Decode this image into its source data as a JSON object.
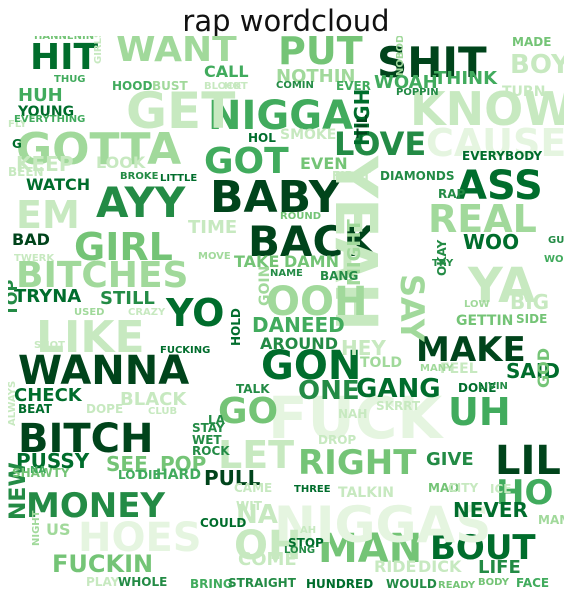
{
  "title": "rap wordcloud",
  "colormap": "Greens",
  "palette": [
    "#e5f5e0",
    "#c7e9c0",
    "#a1d99b",
    "#74c476",
    "#41ab5d",
    "#238b45",
    "#006d2c",
    "#00441b"
  ],
  "words": [
    {
      "t": "SHIT",
      "c": 7
    },
    {
      "t": "NIGGA",
      "c": 4
    },
    {
      "t": "BABY",
      "c": 7
    },
    {
      "t": "BACK",
      "c": 7
    },
    {
      "t": "WANNA",
      "c": 7
    },
    {
      "t": "BITCH",
      "c": 7
    },
    {
      "t": "MAKE",
      "c": 7
    },
    {
      "t": "GON",
      "c": 6
    },
    {
      "t": "LIL",
      "c": 7
    },
    {
      "t": "MONEY",
      "c": 5
    },
    {
      "t": "BOUT",
      "c": 6
    },
    {
      "t": "MAN",
      "c": 3
    },
    {
      "t": "WANT",
      "c": 2
    },
    {
      "t": "PUT",
      "c": 3
    },
    {
      "t": "HIT",
      "c": 6
    },
    {
      "t": "KNOW",
      "c": 1
    },
    {
      "t": "GOTTA",
      "c": 2
    },
    {
      "t": "GET",
      "c": 1
    },
    {
      "t": "LOVE",
      "c": 5
    },
    {
      "t": "GOT",
      "c": 4
    },
    {
      "t": "AYY",
      "c": 5
    },
    {
      "t": "ASS",
      "c": 6
    },
    {
      "t": "REAL",
      "c": 2
    },
    {
      "t": "GIRL",
      "c": 3
    },
    {
      "t": "BITCHES",
      "c": 2
    },
    {
      "t": "YEAH",
      "c": 1
    },
    {
      "t": "YO",
      "c": 6
    },
    {
      "t": "OOH",
      "c": 2
    },
    {
      "t": "LIKE",
      "c": 1
    },
    {
      "t": "UH",
      "c": 4
    },
    {
      "t": "FUCK",
      "c": 0
    },
    {
      "t": "RIGHT",
      "c": 3
    },
    {
      "t": "HO",
      "c": 4
    },
    {
      "t": "GO",
      "c": 3
    },
    {
      "t": "NIGGAS",
      "c": 0
    },
    {
      "t": "HOES",
      "c": 0
    },
    {
      "t": "EM",
      "c": 1
    },
    {
      "t": "CAUSE",
      "c": 0
    },
    {
      "t": "YA",
      "c": 1
    },
    {
      "t": "LET",
      "c": 1
    },
    {
      "t": "SAY",
      "c": 2
    },
    {
      "t": "GANG",
      "c": 6
    },
    {
      "t": "ONE",
      "c": 5
    },
    {
      "t": "POP",
      "c": 3
    },
    {
      "t": "SEE",
      "c": 3
    },
    {
      "t": "PUSSY",
      "c": 6
    },
    {
      "t": "NEVER",
      "c": 6
    },
    {
      "t": "FUCKIN",
      "c": 3
    },
    {
      "t": "NEW",
      "c": 5
    },
    {
      "t": "OH",
      "c": 1
    },
    {
      "t": "NA",
      "c": 1
    },
    {
      "t": "COME",
      "c": 1
    },
    {
      "t": "RIDE",
      "c": 1
    },
    {
      "t": "DICK",
      "c": 1
    },
    {
      "t": "LIFE",
      "c": 5
    },
    {
      "t": "CALL",
      "c": 4
    },
    {
      "t": "NOTHIN",
      "c": 2
    },
    {
      "t": "WOAH",
      "c": 4
    },
    {
      "t": "THINK",
      "c": 4
    },
    {
      "t": "BOY",
      "c": 1
    },
    {
      "t": "HUH",
      "c": 4
    },
    {
      "t": "YOUNG",
      "c": 6
    },
    {
      "t": "EVEN",
      "c": 3
    },
    {
      "t": "HIGH",
      "c": 6
    },
    {
      "t": "DANEED",
      "c": 4
    },
    {
      "t": "TRYNA",
      "c": 6
    },
    {
      "t": "STILL",
      "c": 5
    },
    {
      "t": "WOO",
      "c": 6
    },
    {
      "t": "CHECK",
      "c": 6
    },
    {
      "t": "BLACK",
      "c": 1
    },
    {
      "t": "TIME",
      "c": 1
    },
    {
      "t": "TAKE",
      "c": 3
    },
    {
      "t": "DAMN",
      "c": 3
    },
    {
      "t": "PULL",
      "c": 7
    },
    {
      "t": "GIVE",
      "c": 5
    },
    {
      "t": "SAID",
      "c": 6
    },
    {
      "t": "HEY",
      "c": 1
    },
    {
      "t": "TOP",
      "c": 5
    },
    {
      "t": "BAD",
      "c": 7
    },
    {
      "t": "WATCH",
      "c": 6
    },
    {
      "t": "LOOK",
      "c": 1
    },
    {
      "t": "KEEP",
      "c": 1
    },
    {
      "t": "TOLD",
      "c": 2
    },
    {
      "t": "FEEL",
      "c": 1
    },
    {
      "t": "AROUND",
      "c": 5
    },
    {
      "t": "GOIN",
      "c": 2
    },
    {
      "t": "MIGHT",
      "c": 2
    },
    {
      "t": "GETTIN",
      "c": 3
    },
    {
      "t": "SIDE",
      "c": 3
    },
    {
      "t": "BIG",
      "c": 1
    },
    {
      "t": "GOD",
      "c": 3
    },
    {
      "t": "SKRRT",
      "c": 1
    },
    {
      "t": "BEAT",
      "c": 6
    },
    {
      "t": "DOPE",
      "c": 1
    },
    {
      "t": "STAY",
      "c": 5
    },
    {
      "t": "WET",
      "c": 5
    },
    {
      "t": "ROCK",
      "c": 5
    },
    {
      "t": "HARD",
      "c": 4
    },
    {
      "t": "LOT",
      "c": 4
    },
    {
      "t": "DIE",
      "c": 4
    },
    {
      "t": "CAME",
      "c": 1
    },
    {
      "t": "THREE",
      "c": 6
    },
    {
      "t": "COULD",
      "c": 6
    },
    {
      "t": "STOP",
      "c": 6
    },
    {
      "t": "LONG",
      "c": 5
    },
    {
      "t": "AH",
      "c": 1
    },
    {
      "t": "MAD",
      "c": 3
    },
    {
      "t": "CITY",
      "c": 1
    },
    {
      "t": "ICE",
      "c": 1
    },
    {
      "t": "MAMA",
      "c": 2
    },
    {
      "t": "US",
      "c": 2
    },
    {
      "t": "NIGHT",
      "c": 2
    },
    {
      "t": "PLAY",
      "c": 1
    },
    {
      "t": "WHOLE",
      "c": 5
    },
    {
      "t": "BRING",
      "c": 4
    },
    {
      "t": "STRAIGHT",
      "c": 5
    },
    {
      "t": "HUNDRED",
      "c": 6
    },
    {
      "t": "WOULD",
      "c": 5
    },
    {
      "t": "READY",
      "c": 3
    },
    {
      "t": "BODY",
      "c": 3
    },
    {
      "t": "FACE",
      "c": 4
    },
    {
      "t": "FUCKING",
      "c": 6
    },
    {
      "t": "HOLD",
      "c": 6
    },
    {
      "t": "TALK",
      "c": 5
    },
    {
      "t": "LA",
      "c": 5
    },
    {
      "t": "CLUB",
      "c": 1
    },
    {
      "t": "NAH",
      "c": 1
    },
    {
      "t": "DONE",
      "c": 6
    },
    {
      "t": "LIVIN",
      "c": 5
    },
    {
      "t": "MANY",
      "c": 2
    },
    {
      "t": "BANG",
      "c": 5
    },
    {
      "t": "NAME",
      "c": 5
    },
    {
      "t": "ROUND",
      "c": 3
    },
    {
      "t": "TRY",
      "c": 5
    },
    {
      "t": "OKAY",
      "c": 5
    },
    {
      "t": "LOW",
      "c": 2
    },
    {
      "t": "WORK",
      "c": 4
    },
    {
      "t": "GUCCI",
      "c": 5
    },
    {
      "t": "TWERK",
      "c": 1
    },
    {
      "t": "USED",
      "c": 2
    },
    {
      "t": "CRAZY",
      "c": 1
    },
    {
      "t": "SHOT",
      "c": 1
    },
    {
      "t": "MOVE",
      "c": 2
    },
    {
      "t": "SMOKE",
      "c": 1
    },
    {
      "t": "HOL",
      "c": 6
    },
    {
      "t": "TIL",
      "c": 7
    },
    {
      "t": "DIAMONDS",
      "c": 5
    },
    {
      "t": "FIRST",
      "c": 1
    },
    {
      "t": "EVERYBODY",
      "c": 6
    },
    {
      "t": "RAP",
      "c": 5
    },
    {
      "t": "BROKE",
      "c": 5
    },
    {
      "t": "LITTLE",
      "c": 6
    },
    {
      "t": "THUG",
      "c": 4
    },
    {
      "t": "GIRLS",
      "c": 1
    },
    {
      "t": "HOOD",
      "c": 4
    },
    {
      "t": "BUST",
      "c": 2
    },
    {
      "t": "BLOCK",
      "c": 1
    },
    {
      "t": "HOT",
      "c": 1
    },
    {
      "t": "COMIN",
      "c": 5
    },
    {
      "t": "EVER",
      "c": 4
    },
    {
      "t": "NOBODY",
      "c": 2
    },
    {
      "t": "POPPIN",
      "c": 5
    },
    {
      "t": "TURN",
      "c": 1
    },
    {
      "t": "FLY",
      "c": 1
    },
    {
      "t": "EVERYTHING",
      "c": 4
    },
    {
      "t": "MADE",
      "c": 3
    },
    {
      "t": "HANNENIN",
      "c": 3
    },
    {
      "t": "BEEN",
      "c": 1
    },
    {
      "t": "G",
      "c": 6
    },
    {
      "t": "WIT",
      "c": 1
    },
    {
      "t": "DROP",
      "c": 1
    },
    {
      "t": "TALKIN",
      "c": 1
    },
    {
      "t": "ALWAYS",
      "c": 1
    },
    {
      "t": "SHAWTY",
      "c": 3
    },
    {
      "t": "NA",
      "c": 4
    }
  ]
}
